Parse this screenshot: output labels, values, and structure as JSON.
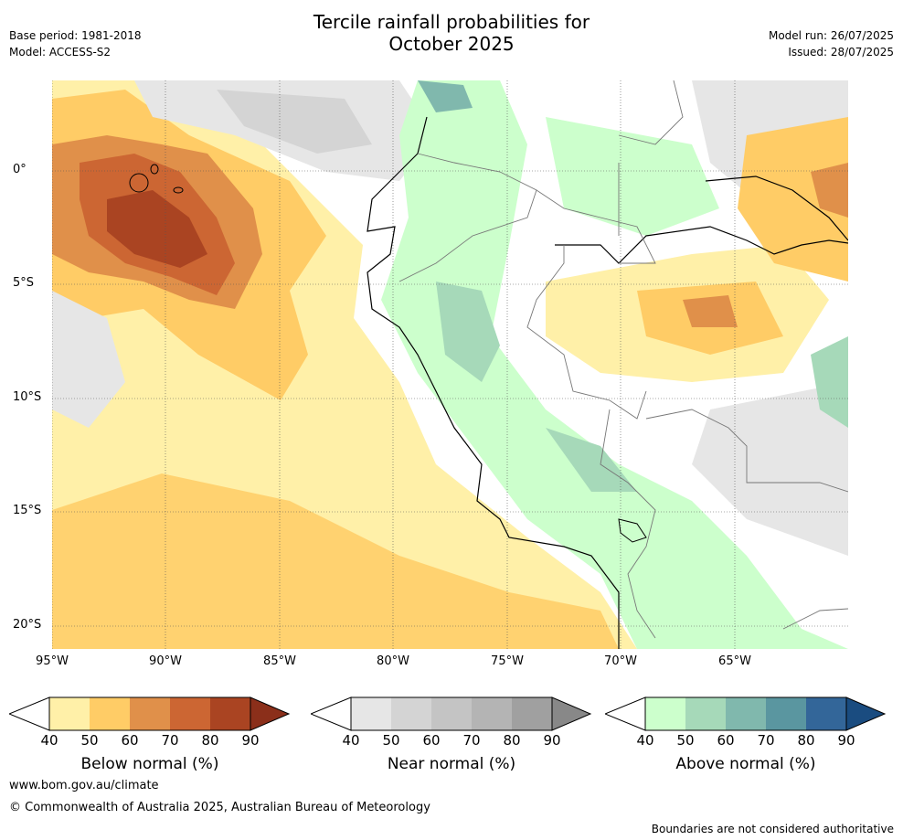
{
  "title_line1": "Tercile rainfall probabilities for",
  "title_line2": "October 2025",
  "meta_left": [
    "Base period: 1981-2018",
    "Model: ACCESS-S2"
  ],
  "meta_right": [
    "Model run: 26/07/2025",
    "Issued: 28/07/2025"
  ],
  "lon_ticks": [
    "95°W",
    "90°W",
    "85°W",
    "80°W",
    "75°W",
    "70°W",
    "65°W"
  ],
  "lat_ticks": [
    "0°",
    "5°S",
    "10°S",
    "15°S",
    "20°S"
  ],
  "colorbars": [
    {
      "label": "Below normal (%)",
      "ticks": [
        "40",
        "50",
        "60",
        "70",
        "80",
        "90"
      ],
      "colors": [
        "#fff0a8",
        "#ffcc66",
        "#e0904a",
        "#cc6633",
        "#aa4422",
        "#8b2f1a"
      ]
    },
    {
      "label": "Near normal (%)",
      "ticks": [
        "40",
        "50",
        "60",
        "70",
        "80",
        "90"
      ],
      "colors": [
        "#e6e6e6",
        "#d4d4d4",
        "#c4c4c4",
        "#b4b4b4",
        "#a0a0a0",
        "#888888"
      ]
    },
    {
      "label": "Above normal (%)",
      "ticks": [
        "40",
        "50",
        "60",
        "70",
        "80",
        "90"
      ],
      "colors": [
        "#ccffcc",
        "#a6d9b9",
        "#80b8ad",
        "#5a96a0",
        "#336699",
        "#1a4c80"
      ]
    }
  ],
  "footer_url": "www.bom.gov.au/climate",
  "footer_copyright": "© Commonwealth of Australia 2025, Australian Bureau of Meteorology",
  "footer_disclaimer": "Boundaries are not considered authoritative"
}
